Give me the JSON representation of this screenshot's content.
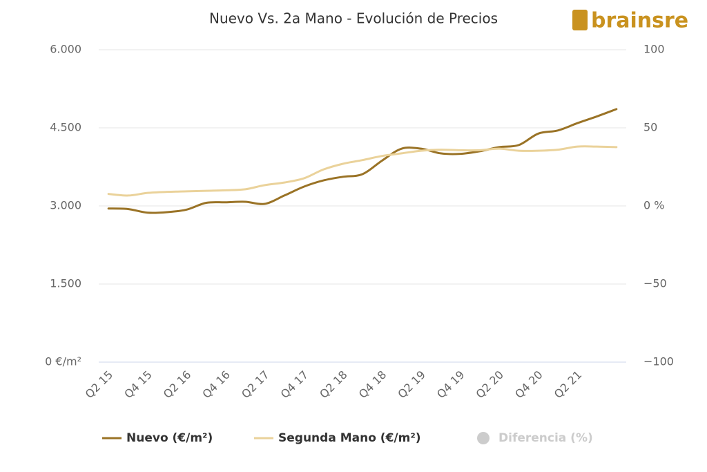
{
  "chart_data": {
    "type": "line",
    "title": "Nuevo Vs. 2a Mano - Evolución de Precios",
    "logo": "brainsre",
    "categories": [
      "Q2 15",
      null,
      "Q4 15",
      null,
      "Q2 16",
      null,
      "Q4 16",
      null,
      "Q2 17",
      null,
      "Q4 17",
      null,
      "Q2 18",
      null,
      "Q4 18",
      null,
      "Q2 19",
      null,
      "Q4 19",
      null,
      "Q2 20",
      null,
      "Q4 20",
      null,
      "Q2 21",
      null,
      null
    ],
    "series": [
      {
        "name": "Nuevo (€/m²)",
        "color": "#9a7326",
        "values": [
          2950,
          2940,
          2870,
          2880,
          2930,
          3060,
          3070,
          3080,
          3040,
          3200,
          3370,
          3490,
          3560,
          3610,
          3870,
          4100,
          4100,
          4010,
          4000,
          4050,
          4130,
          4170,
          4390,
          4450,
          4590,
          4720,
          4860
        ]
      },
      {
        "name": "Segunda Mano (€/m²)",
        "color": "#ead29a",
        "values": [
          3230,
          3200,
          3250,
          3270,
          3280,
          3290,
          3300,
          3320,
          3400,
          3450,
          3530,
          3700,
          3810,
          3880,
          3960,
          4010,
          4060,
          4080,
          4070,
          4070,
          4100,
          4060,
          4060,
          4080,
          4140,
          4140,
          4130
        ]
      },
      {
        "name": "Diferencia (%)",
        "color": "#cccccc",
        "axis": "y2",
        "visible": false
      }
    ],
    "ylim": [
      0,
      6000
    ],
    "yticks": [
      {
        "value": 0,
        "label": "0 €/m²"
      },
      {
        "value": 1500,
        "label": "1.500"
      },
      {
        "value": 3000,
        "label": "3.000"
      },
      {
        "value": 4500,
        "label": "4.500"
      },
      {
        "value": 6000,
        "label": "6.000"
      }
    ],
    "y2lim": [
      -100,
      100
    ],
    "y2ticks": [
      {
        "value": -100,
        "label": "−100"
      },
      {
        "value": -50,
        "label": "−50"
      },
      {
        "value": 0,
        "label": "0 %"
      },
      50,
      100
    ],
    "grid": true
  }
}
